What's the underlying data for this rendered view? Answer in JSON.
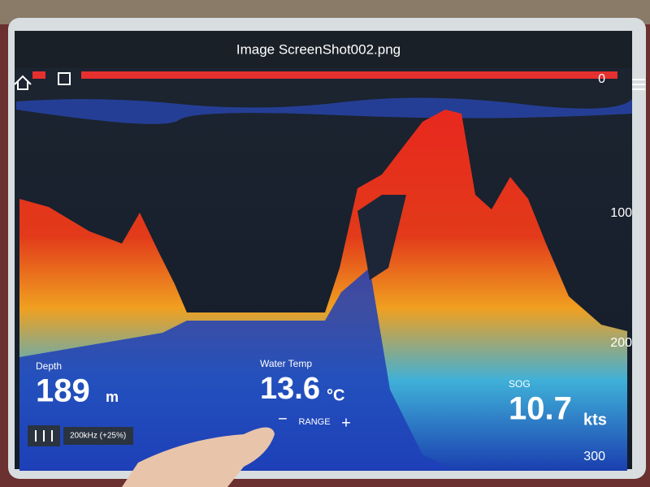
{
  "title": "Image ScreenShot002.png",
  "depth_scale": [
    "0",
    "100",
    "200",
    "300"
  ],
  "readouts": {
    "depth": {
      "label": "Depth",
      "value": "189",
      "unit": "m"
    },
    "water_temp": {
      "label": "Water Temp",
      "value": "13.6",
      "unit": "°C"
    },
    "sog": {
      "label": "SOG",
      "value": "10.7",
      "unit": "kts"
    }
  },
  "range": {
    "label": "RANGE",
    "minus": "−",
    "plus": "+"
  },
  "frequency": "200kHz (+25%)"
}
